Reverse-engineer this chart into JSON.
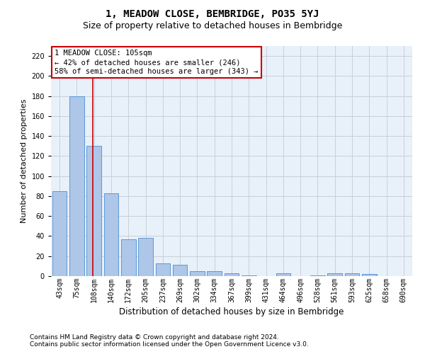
{
  "title": "1, MEADOW CLOSE, BEMBRIDGE, PO35 5YJ",
  "subtitle": "Size of property relative to detached houses in Bembridge",
  "xlabel": "Distribution of detached houses by size in Bembridge",
  "ylabel": "Number of detached properties",
  "bar_labels": [
    "43sqm",
    "75sqm",
    "108sqm",
    "140sqm",
    "172sqm",
    "205sqm",
    "237sqm",
    "269sqm",
    "302sqm",
    "334sqm",
    "367sqm",
    "399sqm",
    "431sqm",
    "464sqm",
    "496sqm",
    "528sqm",
    "561sqm",
    "593sqm",
    "625sqm",
    "658sqm",
    "690sqm"
  ],
  "bar_values": [
    85,
    180,
    130,
    83,
    37,
    38,
    13,
    11,
    5,
    5,
    3,
    1,
    0,
    3,
    0,
    1,
    3,
    3,
    2,
    0,
    0
  ],
  "bar_color": "#aec6e8",
  "bar_edge_color": "#5b9bd5",
  "vline_pos": 1.92,
  "vline_color": "#cc0000",
  "annotation_line1": "1 MEADOW CLOSE: 105sqm",
  "annotation_line2": "← 42% of detached houses are smaller (246)",
  "annotation_line3": "58% of semi-detached houses are larger (343) →",
  "annotation_box_facecolor": "#ffffff",
  "annotation_box_edgecolor": "#cc0000",
  "ylim": [
    0,
    230
  ],
  "yticks": [
    0,
    20,
    40,
    60,
    80,
    100,
    120,
    140,
    160,
    180,
    200,
    220
  ],
  "grid_color": "#c8cfd8",
  "bg_color": "#e8f0fa",
  "footer1": "Contains HM Land Registry data © Crown copyright and database right 2024.",
  "footer2": "Contains public sector information licensed under the Open Government Licence v3.0.",
  "title_fontsize": 10,
  "subtitle_fontsize": 9,
  "xlabel_fontsize": 8.5,
  "ylabel_fontsize": 8,
  "tick_fontsize": 7,
  "annotation_fontsize": 7.5,
  "footer_fontsize": 6.5
}
